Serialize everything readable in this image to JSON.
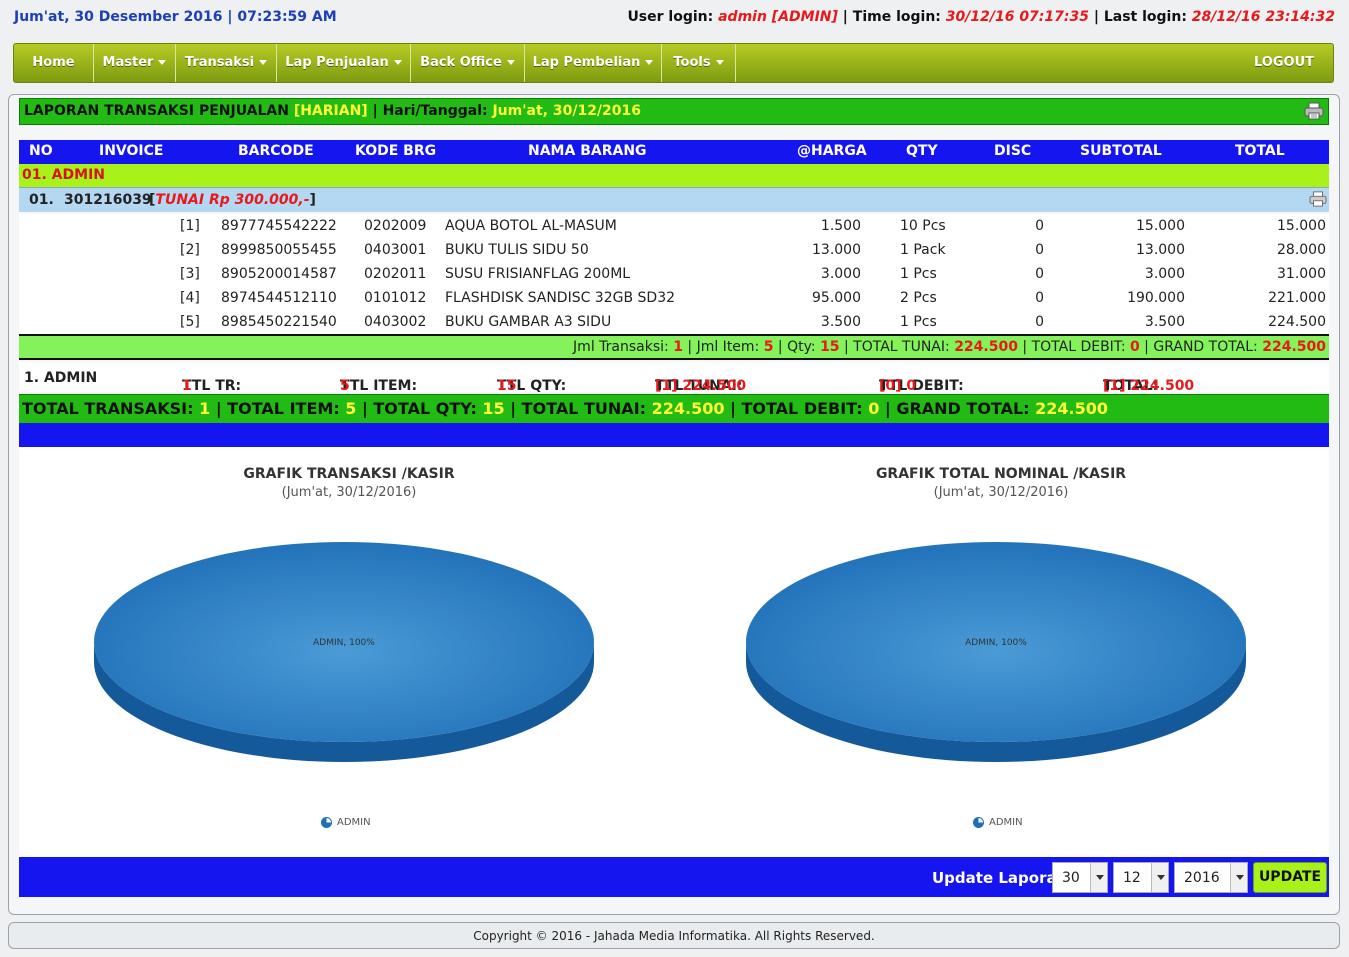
{
  "topbar": {
    "date": "Jum'at, 30 Desember 2016 | 07:23:59 AM",
    "user_login_label": "User login:",
    "user_login_value": "admin [ADMIN]",
    "time_login_label": "Time login:",
    "time_login_value": "30/12/16 07:17:35",
    "last_login_label": "Last login:",
    "last_login_value": "28/12/16 23:14:32"
  },
  "menu": {
    "home": "Home",
    "master": "Master",
    "transaksi": "Transaksi",
    "lap_penjualan": "Lap Penjualan",
    "back_office": "Back Office",
    "lap_pembelian": "Lap Pembelian",
    "tools": "Tools",
    "logout": "LOGOUT"
  },
  "report": {
    "title": "LAPORAN TRANSAKSI PENJUALAN",
    "period": "[HARIAN]",
    "date_label": "| Hari/Tanggal:",
    "date_value": "Jum'at, 30/12/2016"
  },
  "table": {
    "headers": [
      "NO",
      "INVOICE",
      "BARCODE",
      "KODE BRG",
      "NAMA BARANG",
      "@HARGA",
      "QTY",
      "DISC",
      "SUBTOTAL",
      "TOTAL"
    ],
    "group": "01. ADMIN",
    "invoice_no": "01.",
    "invoice_id": "301216039",
    "invoice_payment": "TUNAI Rp 300.000,-",
    "items": [
      {
        "no": "[1]",
        "barcode": "8977745542222",
        "kode": "0202009",
        "nama": "AQUA BOTOL AL-MASUM",
        "harga": "1.500",
        "qty": "10 Pcs",
        "disc": "0",
        "subtotal": "15.000",
        "total": "15.000"
      },
      {
        "no": "[2]",
        "barcode": "8999850055455",
        "kode": "0403001",
        "nama": "BUKU TULIS SIDU 50",
        "harga": "13.000",
        "qty": "1 Pack",
        "disc": "0",
        "subtotal": "13.000",
        "total": "28.000"
      },
      {
        "no": "[3]",
        "barcode": "8905200014587",
        "kode": "0202011",
        "nama": "SUSU FRISIANFLAG 200ML",
        "harga": "3.000",
        "qty": "1 Pcs",
        "disc": "0",
        "subtotal": "3.000",
        "total": "31.000"
      },
      {
        "no": "[4]",
        "barcode": "8974544512110",
        "kode": "0101012",
        "nama": "FLASHDISK SANDISC 32GB SD32",
        "harga": "95.000",
        "qty": "2 Pcs",
        "disc": "0",
        "subtotal": "190.000",
        "total": "221.000"
      },
      {
        "no": "[5]",
        "barcode": "8985450221540",
        "kode": "0403002",
        "nama": "BUKU GAMBAR A3 SIDU",
        "harga": "3.500",
        "qty": "1 Pcs",
        "disc": "0",
        "subtotal": "3.500",
        "total": "224.500"
      }
    ]
  },
  "summary": {
    "jml_transaksi_label": "Jml Transaksi:",
    "jml_transaksi": "1",
    "jml_item_label": "Jml Item:",
    "jml_item": "5",
    "qty_label": "Qty:",
    "qty": "15",
    "total_tunai_label": "TOTAL TUNAI:",
    "total_tunai": "224.500",
    "total_debit_label": "TOTAL DEBIT:",
    "total_debit": "0",
    "grand_total_label": "GRAND TOTAL:",
    "grand_total": "224.500"
  },
  "kasir_total": {
    "name": "1. ADMIN",
    "ttl_tr_label": "TTL TR:",
    "ttl_tr": "1",
    "ttl_item_label": "TTL ITEM:",
    "ttl_item": "5",
    "ttl_qty_label": "TTL QTY:",
    "ttl_qty": "15",
    "ttl_tunai_label": "TTL TUNAI:",
    "ttl_tunai": "[1] 224.500",
    "ttl_debit_label": "TTL DEBIT:",
    "ttl_debit": "[0] 0",
    "total_label": "TOTAL:",
    "total": "[1] 224.500"
  },
  "grand": {
    "total_transaksi_label": "TOTAL TRANSAKSI:",
    "total_transaksi": "1",
    "total_item_label": "TOTAL ITEM:",
    "total_item": "5",
    "total_qty_label": "TOTAL QTY:",
    "total_qty": "15",
    "total_tunai_label": "TOTAL TUNAI:",
    "total_tunai": "224.500",
    "total_debit_label": "TOTAL DEBIT:",
    "total_debit": "0",
    "grand_total_label": "GRAND TOTAL:",
    "grand_total": "224.500"
  },
  "chart_data": [
    {
      "type": "pie",
      "title": "GRAFIK TRANSAKSI /KASIR",
      "subtitle": "(Jum'at, 30/12/2016)",
      "categories": [
        "ADMIN"
      ],
      "values": [
        100
      ],
      "slice_label": "ADMIN, 100%",
      "legend": [
        "ADMIN"
      ],
      "legend_position": "bottom",
      "color": "#1f6fb8"
    },
    {
      "type": "pie",
      "title": "GRAFIK TOTAL NOMINAL /KASIR",
      "subtitle": "(Jum'at, 30/12/2016)",
      "categories": [
        "ADMIN"
      ],
      "values": [
        100
      ],
      "slice_label": "ADMIN, 100%",
      "legend": [
        "ADMIN"
      ],
      "legend_position": "bottom",
      "color": "#1f6fb8"
    }
  ],
  "update_form": {
    "label": "Update Laporan:",
    "day": "30",
    "month": "12",
    "year": "2016",
    "button": "UPDATE"
  },
  "footer": {
    "copyright": "Copyright © 2016 - Jahada Media Informatika. All Rights Reserved."
  },
  "icons": {
    "print": "printer-icon",
    "legend": "pie-legend-icon"
  }
}
